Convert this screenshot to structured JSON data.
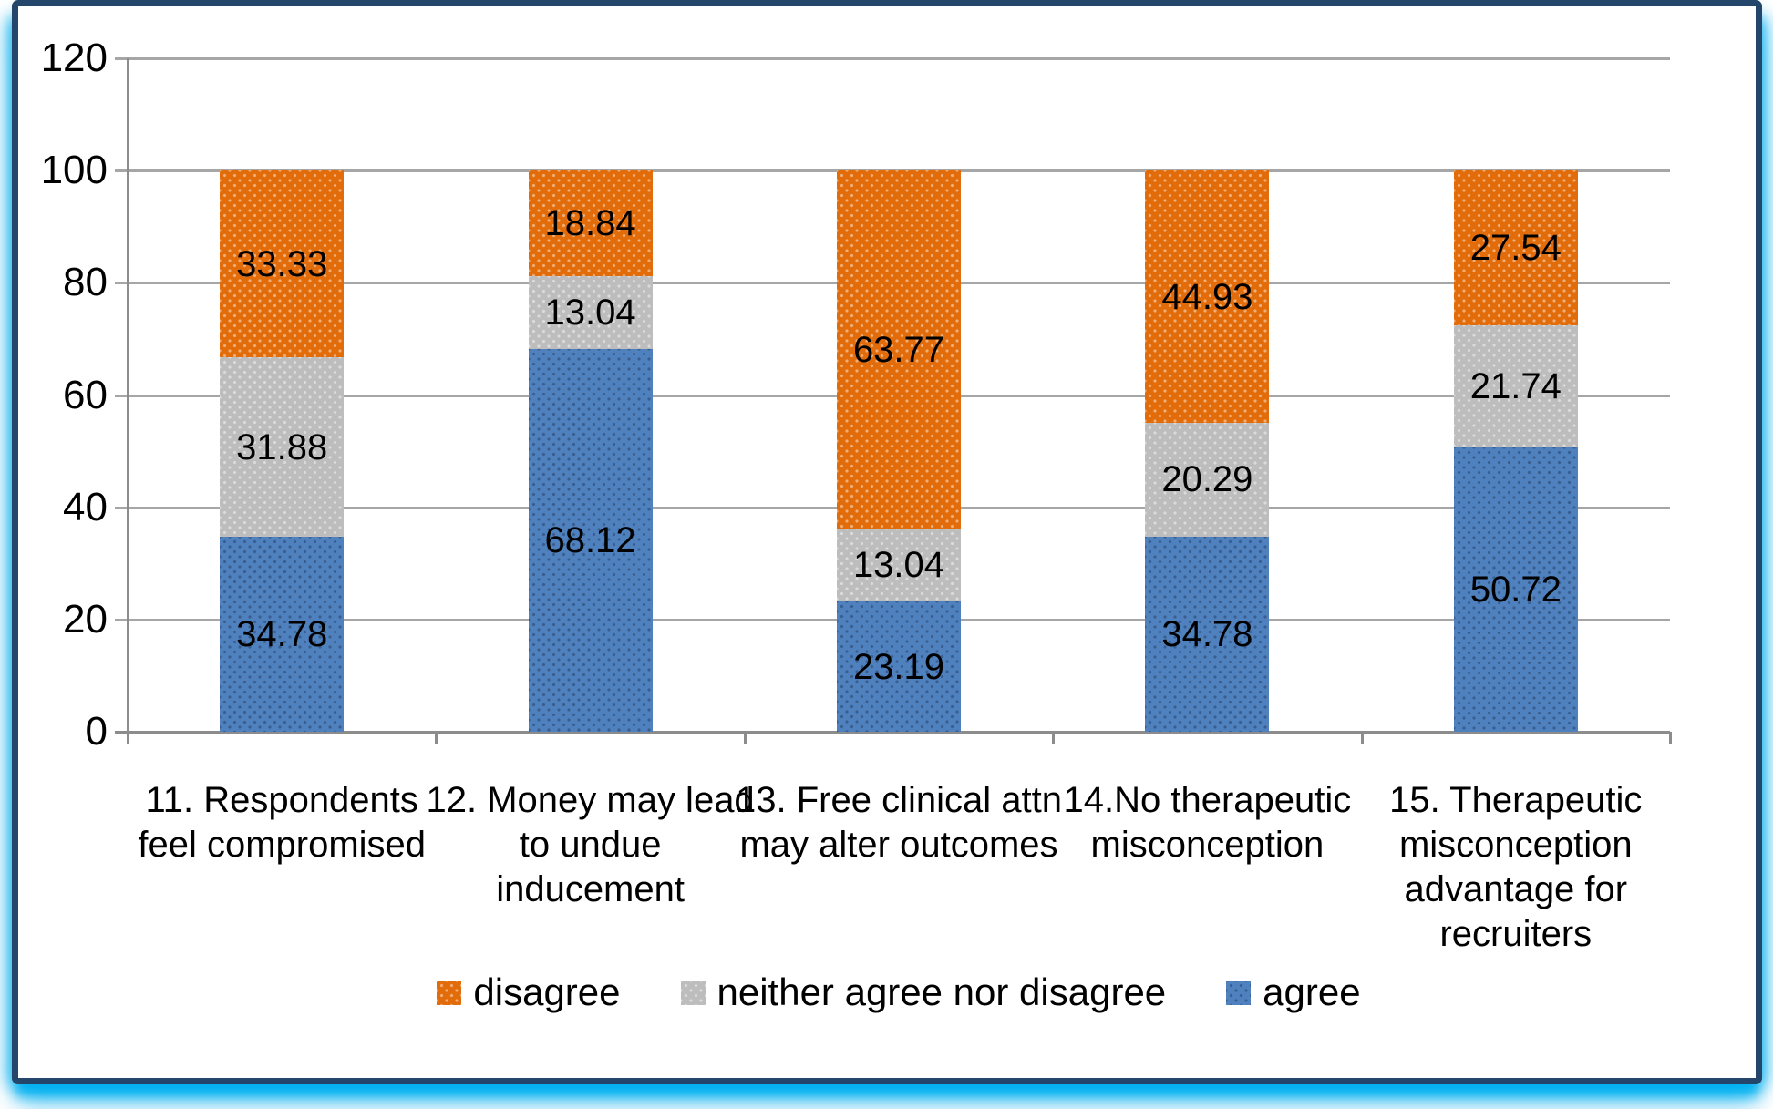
{
  "frame": {
    "border_color": "#24466B",
    "glow_color": "#00B0F0",
    "background": "#FFFFFF"
  },
  "axes": {
    "y_tick_labels": [
      "120",
      "100",
      "80",
      "60",
      "40",
      "20",
      "0"
    ],
    "gridline_color": "#A6A6A6",
    "axis_color": "#8C8C8C"
  },
  "legend": {
    "items": [
      {
        "label": "disagree",
        "series": "disagree"
      },
      {
        "label": "neither agree nor disagree",
        "series": "neither agree nor disagree"
      },
      {
        "label": "agree",
        "series": "agree"
      }
    ]
  },
  "chart_data": {
    "type": "bar",
    "stacked": true,
    "title": "",
    "xlabel": "",
    "ylabel": "",
    "ylim": [
      0,
      120
    ],
    "yticks": [
      120,
      100,
      80,
      60,
      40,
      20,
      0
    ],
    "grid": true,
    "legend_position": "bottom",
    "categories": [
      "11. Respondents\nfeel compromised",
      "12. Money may lead\nto undue\ninducement",
      "13. Free clinical attn\nmay alter outcomes",
      "14.No therapeutic\nmisconception",
      "15. Therapeutic\nmisconception\nadvantage for\nrecruiters"
    ],
    "series": [
      {
        "name": "agree",
        "color": "#4E81BD",
        "pattern": "dark",
        "values": [
          34.78,
          68.12,
          23.19,
          34.78,
          50.72
        ]
      },
      {
        "name": "neither agree nor disagree",
        "color": "#BDBDBD",
        "pattern": "light",
        "values": [
          31.88,
          13.04,
          13.04,
          20.29,
          21.74
        ]
      },
      {
        "name": "disagree",
        "color": "#E26B0A",
        "pattern": "light",
        "values": [
          33.33,
          18.84,
          63.77,
          44.93,
          27.54
        ]
      }
    ]
  }
}
